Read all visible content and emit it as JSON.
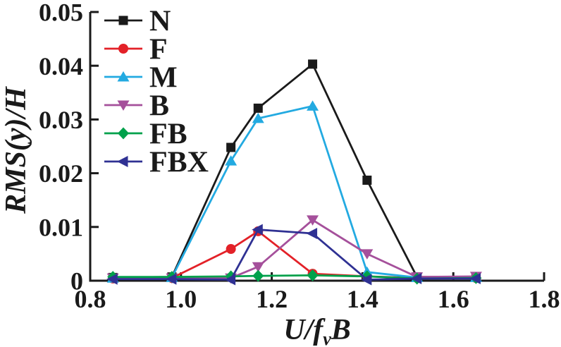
{
  "chart_data": {
    "type": "line",
    "title": "",
    "ink_color": "#1a1a1a",
    "background_color": "#ffffff",
    "grid": false,
    "legend_position": "upper-left-inside",
    "xlabel": "U/fvB",
    "ylabel": "RMS(y)/H",
    "xlabel_parts": {
      "u": "U",
      "slash": "/",
      "f": "f",
      "sub": "v",
      "b": "B"
    },
    "ylabel_parts": {
      "p1": "RMS(",
      "y": "y",
      "p2": ")/",
      "h": "H"
    },
    "xlim": [
      0.8,
      1.8
    ],
    "ylim": [
      0,
      0.05
    ],
    "xticks": {
      "values": [
        0.8,
        1.0,
        1.2,
        1.4,
        1.6,
        1.8
      ],
      "labels": [
        "0.8",
        "1.0",
        "1.2",
        "1.4",
        "1.6",
        "1.8"
      ]
    },
    "yticks": {
      "values": [
        0,
        0.01,
        0.02,
        0.03,
        0.04,
        0.05
      ],
      "labels": [
        "0",
        "0.01",
        "0.02",
        "0.03",
        "0.04",
        "0.05"
      ]
    },
    "x": [
      0.85,
      0.98,
      1.11,
      1.17,
      1.29,
      1.41,
      1.52,
      1.65
    ],
    "series": [
      {
        "name": "N",
        "color": "#1a1a1a",
        "marker": "square",
        "values": [
          0.0006,
          0.0007,
          0.0248,
          0.0321,
          0.0403,
          0.0187,
          0.0007,
          0.0007
        ]
      },
      {
        "name": "F",
        "color": "#e32128",
        "marker": "circle",
        "values": [
          0.0004,
          0.0005,
          0.0059,
          0.0092,
          0.0013,
          0.0008,
          0.0005,
          0.0005
        ]
      },
      {
        "name": "M",
        "color": "#23aae1",
        "marker": "triangle-up",
        "values": [
          0.0005,
          0.0006,
          0.0223,
          0.0302,
          0.0325,
          0.0016,
          0.0006,
          0.0006
        ]
      },
      {
        "name": "B",
        "color": "#a5509b",
        "marker": "triangle-down",
        "values": [
          0.0005,
          0.0005,
          0.0005,
          0.0026,
          0.0113,
          0.005,
          0.0007,
          0.0008
        ]
      },
      {
        "name": "FB",
        "color": "#00a14b",
        "marker": "diamond",
        "values": [
          0.0007,
          0.0007,
          0.0008,
          0.0009,
          0.001,
          0.0008,
          0.0004,
          0.0005
        ]
      },
      {
        "name": "FBX",
        "color": "#2f3193",
        "marker": "triangle-left",
        "values": [
          0.0003,
          0.0003,
          0.0002,
          0.0095,
          0.0088,
          0.0002,
          0.0004,
          0.0004
        ]
      }
    ]
  }
}
